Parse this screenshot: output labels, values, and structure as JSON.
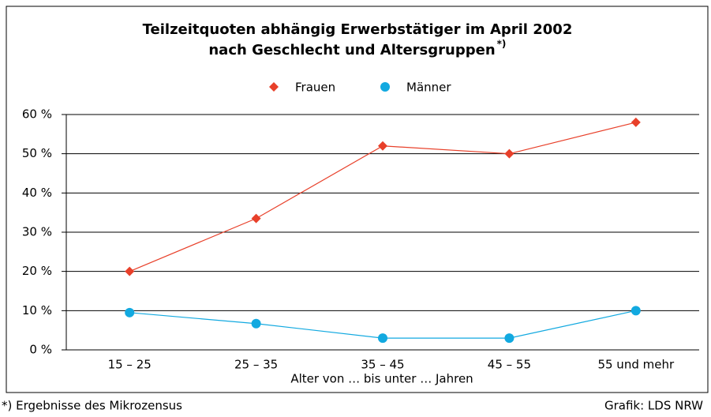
{
  "chart_data": {
    "type": "line",
    "title": [
      "Teilzeitquoten abhängig Erwerbstätiger im April 2002",
      "nach Geschlecht und Altersgruppen"
    ],
    "title_marker": "*)",
    "x_label": "Alter von … bis unter … Jahren",
    "categories": [
      "15 – 25",
      "25 – 35",
      "35 – 45",
      "45 – 55",
      "55 und mehr"
    ],
    "series": [
      {
        "name": "Frauen",
        "color": "#e8402a",
        "marker": "diamond",
        "values": [
          20,
          33.5,
          52,
          50,
          58
        ]
      },
      {
        "name": "Männer",
        "color": "#12a9e0",
        "marker": "circle",
        "values": [
          9.5,
          6.7,
          3,
          3,
          10
        ]
      }
    ],
    "ylim": [
      0,
      60
    ],
    "yticks": [
      {
        "value": 0,
        "label": "0 %"
      },
      {
        "value": 10,
        "label": "10 %"
      },
      {
        "value": 20,
        "label": "20 %"
      },
      {
        "value": 30,
        "label": "30 %"
      },
      {
        "value": 40,
        "label": "40 %"
      },
      {
        "value": 50,
        "label": "50 %"
      },
      {
        "value": 60,
        "label": "60 %"
      }
    ],
    "grid": true,
    "legend": "top",
    "footnote": "*) Ergebnisse des Mikrozensus",
    "source": "Grafik: LDS NRW"
  }
}
